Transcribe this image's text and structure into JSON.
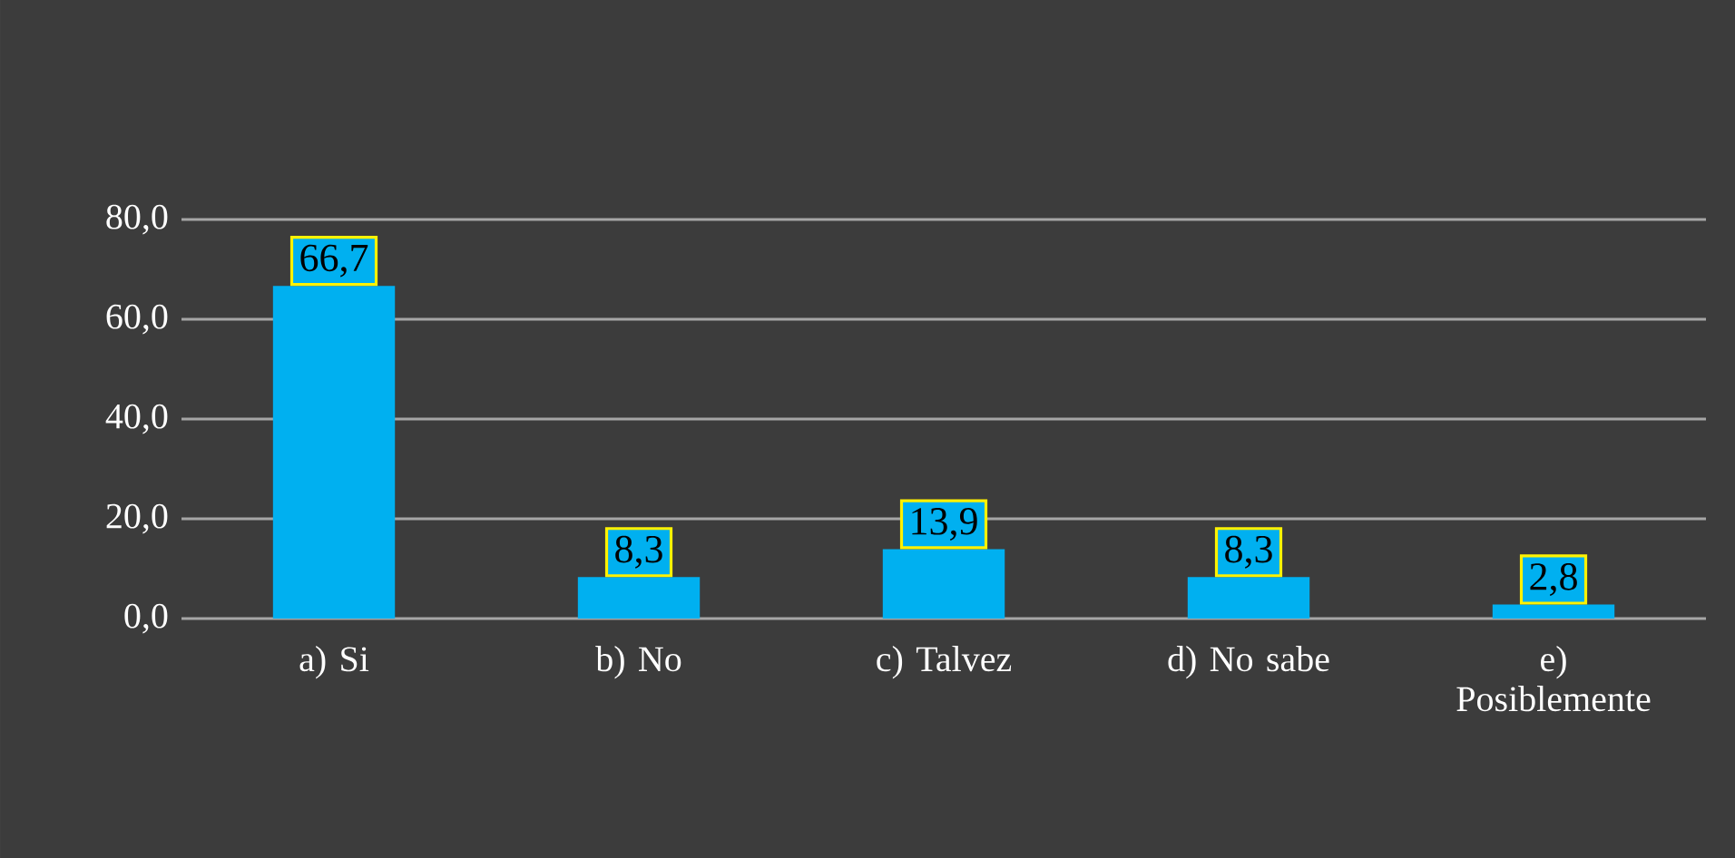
{
  "chart_data": {
    "type": "bar",
    "categories": [
      "a) Si",
      "b) No",
      "c) Talvez",
      "d) No sabe",
      "e) Posiblemente"
    ],
    "values": [
      66.7,
      8.3,
      13.9,
      8.3,
      2.8
    ],
    "value_labels": [
      "66,7",
      "8,3",
      "13,9",
      "8,3",
      "2,8"
    ],
    "color": "#00b0f0",
    "ylim": [
      0,
      80
    ],
    "yticks": [
      {
        "value": 0,
        "label": "0,0"
      },
      {
        "value": 20,
        "label": "20,0"
      },
      {
        "value": 40,
        "label": "40,0"
      },
      {
        "value": 60,
        "label": "60,0"
      },
      {
        "value": 80,
        "label": "80,0"
      }
    ],
    "grid": "y"
  }
}
